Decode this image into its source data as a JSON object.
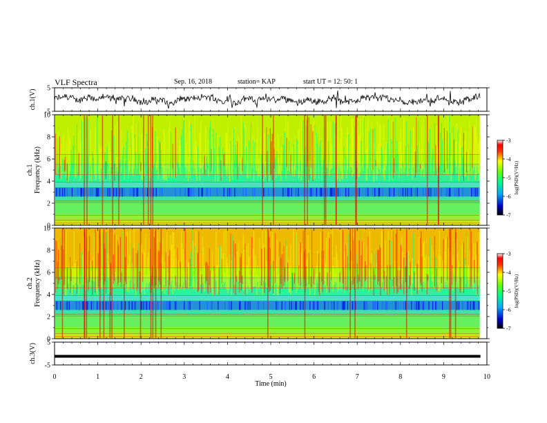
{
  "header": {
    "title": "VLF Spectra",
    "date": "Sep. 16, 2018",
    "station": "station= KAP",
    "start_time": "start  UT =   12: 50: 1"
  },
  "chart_data": [
    {
      "type": "line",
      "panel": "ch1-waveform",
      "ylabel": "ch.1(V)",
      "ylim": [
        -5,
        5
      ],
      "yticks": [
        "5",
        "-5"
      ],
      "xlim": [
        0,
        10
      ],
      "series": [
        {
          "color": "#000000",
          "style": "noisy waveform"
        }
      ]
    },
    {
      "type": "heatmap",
      "panel": "ch1-spectrogram",
      "ylabel": "ch.1\nFrequency  (kHz)",
      "ylabel_lines": [
        "ch.1",
        "Frequency  (kHz)"
      ],
      "ylim": [
        0,
        10
      ],
      "yticks": [
        "0",
        "2",
        "4",
        "6",
        "8",
        "10"
      ],
      "xlim": [
        0,
        10
      ],
      "colorbar": {
        "label": "log(PSD)(V²/Hz)",
        "min": -7,
        "max": -3,
        "ticks": [
          "-3",
          "-4",
          "-5",
          "-6",
          "-7"
        ]
      }
    },
    {
      "type": "heatmap",
      "panel": "ch2-spectrogram",
      "ylabel": "ch.2\nFrequency  (kHz)",
      "ylabel_lines": [
        "ch.2",
        "Frequency  (kHz)"
      ],
      "ylim": [
        0,
        10
      ],
      "yticks": [
        "0",
        "2",
        "4",
        "6",
        "8",
        "10"
      ],
      "xlim": [
        0,
        10
      ],
      "colorbar": {
        "label": "log(PSD)(V²/Hz)",
        "min": -7,
        "max": -3,
        "ticks": [
          "-3",
          "-4",
          "-5",
          "-6",
          "-7"
        ]
      }
    },
    {
      "type": "line",
      "panel": "ch3-waveform",
      "ylabel": "ch.3(V)",
      "ylim": [
        -5,
        5
      ],
      "yticks": [
        "5",
        "-5"
      ],
      "xlim": [
        0,
        10
      ],
      "xlabel": "Time  (min)",
      "xticks": [
        "0",
        "1",
        "2",
        "3",
        "4",
        "5",
        "6",
        "7",
        "8",
        "9",
        "10"
      ],
      "series": [
        {
          "color": "#000000",
          "style": "flat thick line",
          "value": -1.2
        }
      ]
    }
  ]
}
